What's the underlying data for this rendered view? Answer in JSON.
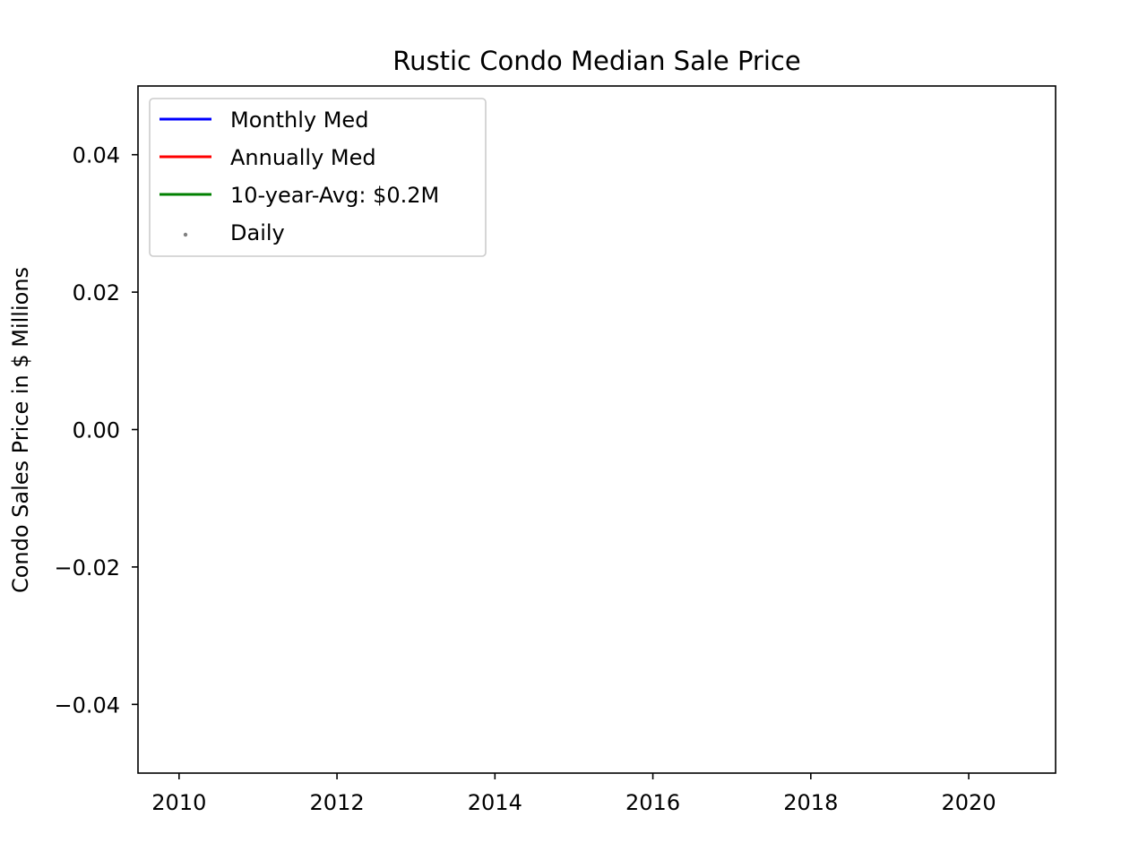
{
  "chart_data": {
    "type": "line",
    "title": "Rustic Condo Median Sale Price",
    "xlabel": "",
    "ylabel": "Condo Sales Price in $ Millions",
    "xlim": [
      2009.48,
      2021.1
    ],
    "ylim": [
      -0.05,
      0.05
    ],
    "x_ticks": [
      2010,
      2012,
      2014,
      2016,
      2018,
      2020
    ],
    "x_tick_labels": [
      "2010",
      "2012",
      "2014",
      "2016",
      "2018",
      "2020"
    ],
    "y_ticks": [
      0.04,
      0.02,
      0.0,
      -0.02,
      -0.04
    ],
    "y_tick_labels": [
      "0.04",
      "0.02",
      "0.00",
      "−0.02",
      "−0.04"
    ],
    "grid": false,
    "legend_position": "top-left",
    "series": [
      {
        "name": "Monthly Med",
        "kind": "line",
        "color": "#0000ff",
        "x": [],
        "y": []
      },
      {
        "name": "Annually Med",
        "kind": "line",
        "color": "#ff0000",
        "x": [],
        "y": []
      },
      {
        "name": "10-year-Avg: $0.2M",
        "kind": "line",
        "color": "#008000",
        "x": [],
        "y": []
      },
      {
        "name": "Daily",
        "kind": "scatter",
        "color": "#808080",
        "x": [],
        "y": []
      }
    ]
  }
}
